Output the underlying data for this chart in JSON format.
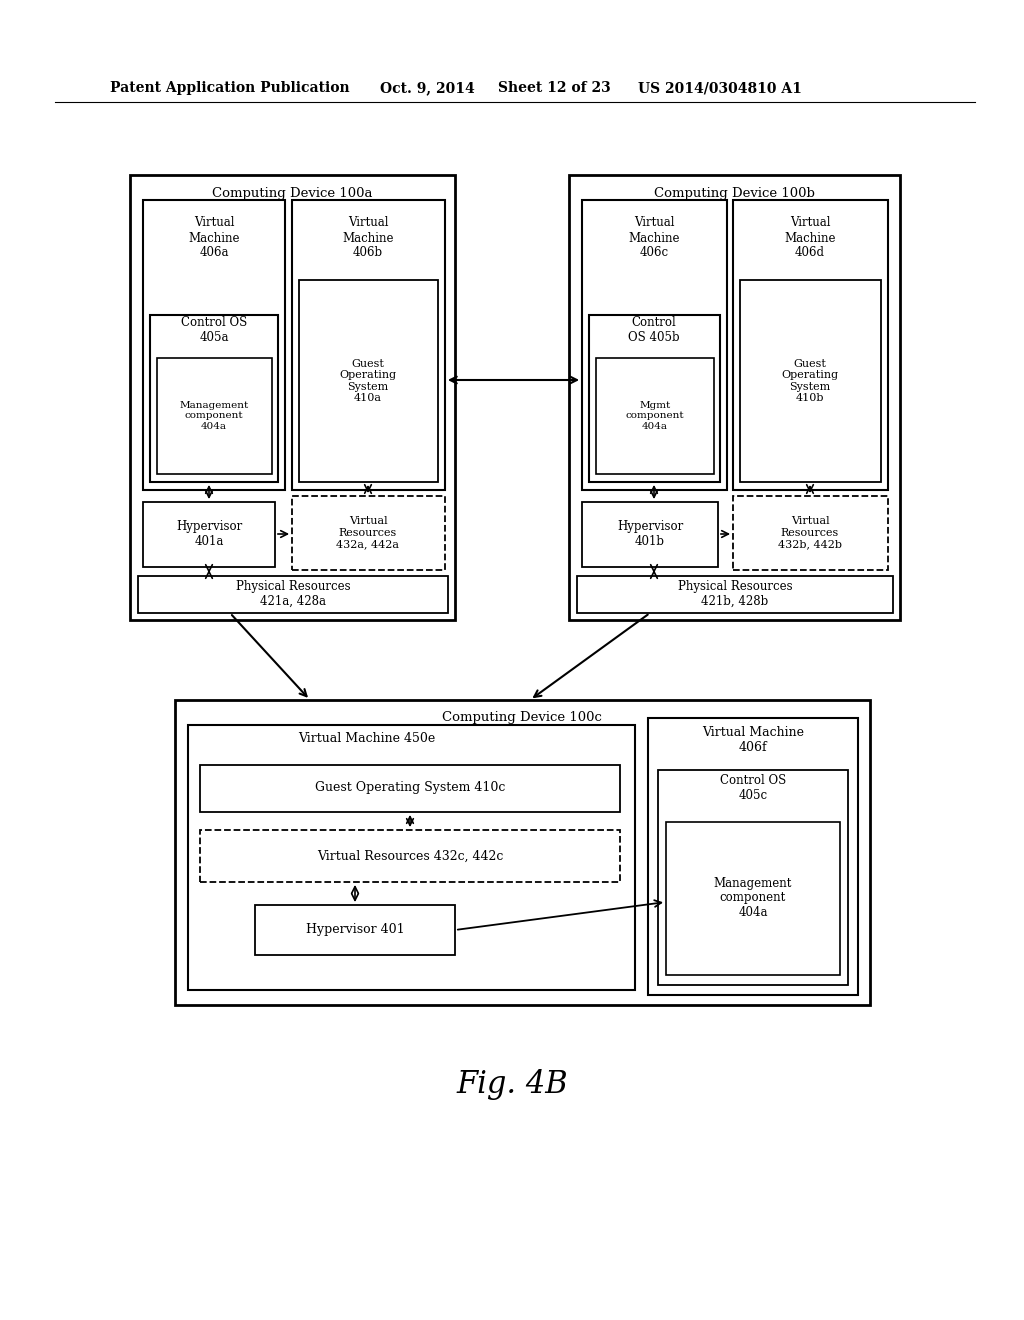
{
  "bg_color": "#ffffff",
  "header_left": "Patent Application Publication",
  "header_date": "Oct. 9, 2014",
  "header_sheet": "Sheet 12 of 23",
  "header_patent": "US 2014/0304810 A1",
  "figure_label": "Fig. 4B"
}
